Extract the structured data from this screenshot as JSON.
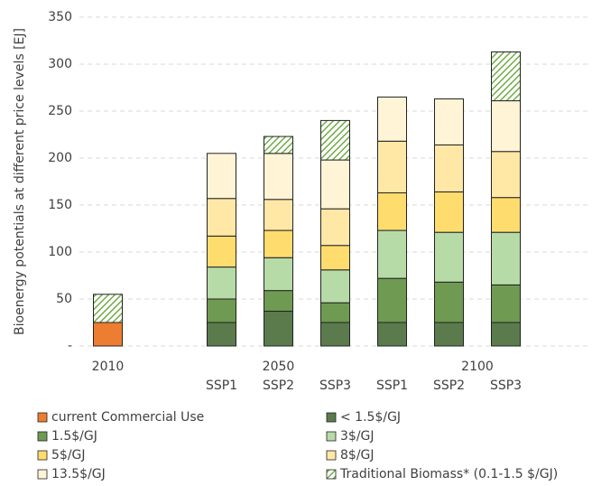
{
  "chart_data": {
    "type": "stacked_bar",
    "y_label": "Bioenergy potentials at different price levels [EJ]",
    "categories": [
      null,
      "SSP1",
      "SSP2",
      "SSP3",
      "SSP1",
      "SSP2",
      "SSP3"
    ],
    "groups": [
      {
        "name": "2010",
        "size": 1
      },
      {
        "name": "2050",
        "size": 3
      },
      {
        "name": "2100",
        "size": 3
      }
    ],
    "series": [
      {
        "name": "current Commercial Use",
        "color": "#ed7d31",
        "values": [
          25,
          null,
          null,
          null,
          null,
          null,
          null
        ]
      },
      {
        "name": "< 1.5$/GJ",
        "color": "#5b7b4d",
        "values": [
          null,
          25,
          37,
          25,
          25,
          25,
          25
        ]
      },
      {
        "name": "1.5$/GJ",
        "color": "#6f9a52",
        "values": [
          null,
          25,
          22,
          21,
          47,
          43,
          40
        ]
      },
      {
        "name": "3$/GJ",
        "color": "#b7dba7",
        "values": [
          null,
          34,
          35,
          35,
          51,
          53,
          56
        ]
      },
      {
        "name": "5$/GJ",
        "color": "#ffdc6e",
        "values": [
          null,
          33,
          29,
          26,
          40,
          43,
          37
        ]
      },
      {
        "name": "8$/GJ",
        "color": "#ffe8a6",
        "values": [
          null,
          40,
          33,
          39,
          55,
          50,
          49
        ]
      },
      {
        "name": "13.5$/GJ",
        "color": "#fff4d6",
        "values": [
          null,
          48,
          49,
          52,
          47,
          49,
          54
        ]
      },
      {
        "name": "Traditional Biomass* (0.1-1.5 $/GJ)",
        "color": "#70ad47",
        "hatch": true,
        "values": [
          30,
          null,
          18,
          42,
          null,
          null,
          52
        ]
      }
    ],
    "ylim": [
      0,
      350
    ],
    "yticks": [
      {
        "value": 0,
        "label": "-"
      },
      50,
      100,
      150,
      200,
      250,
      300,
      350
    ],
    "grid": true
  }
}
